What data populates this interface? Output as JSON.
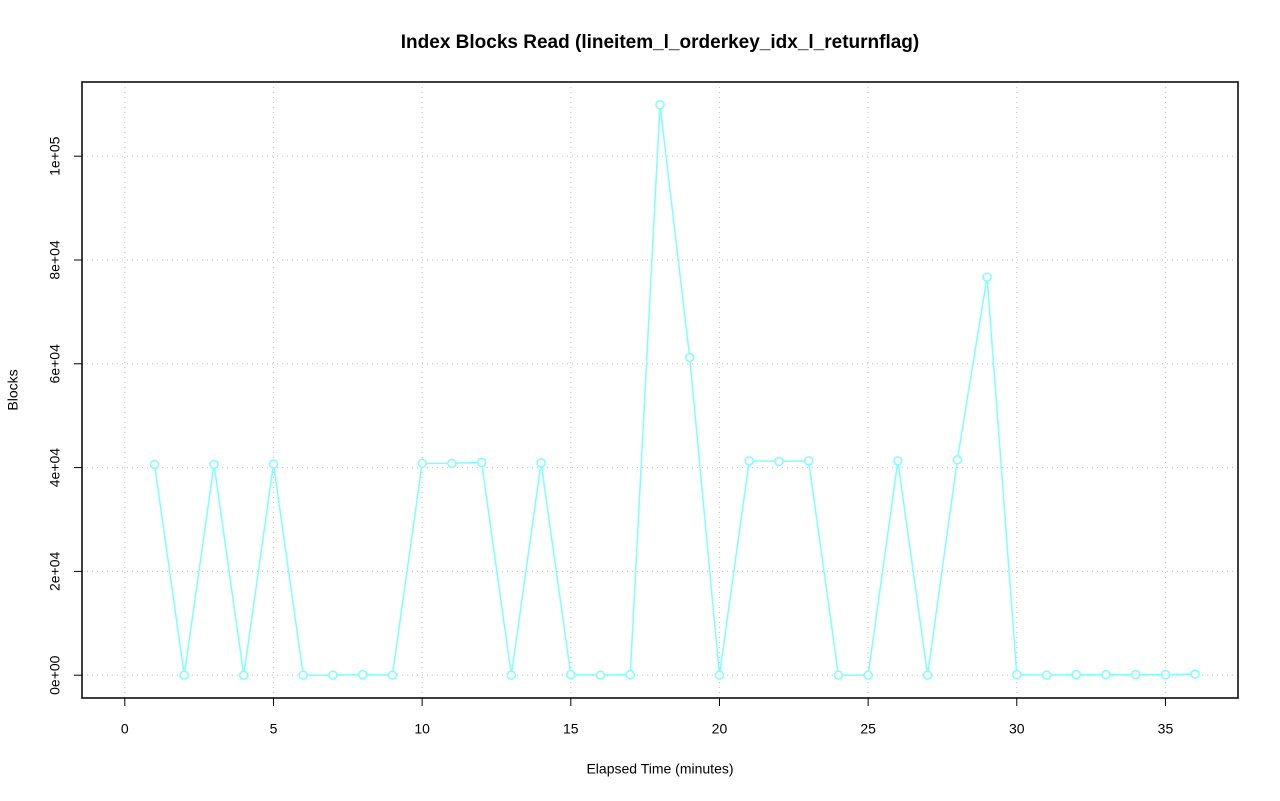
{
  "chart_data": {
    "type": "line",
    "title": "Index Blocks Read (lineitem_l_orderkey_idx_l_returnflag)",
    "xlabel": "Elapsed Time (minutes)",
    "ylabel": "Blocks",
    "x": [
      1,
      2,
      3,
      4,
      5,
      6,
      7,
      8,
      9,
      10,
      11,
      12,
      13,
      14,
      15,
      16,
      17,
      18,
      19,
      20,
      21,
      22,
      23,
      24,
      25,
      26,
      27,
      28,
      29,
      30,
      31,
      32,
      33,
      34,
      35,
      36
    ],
    "values": [
      40600,
      0,
      40600,
      0,
      40700,
      0,
      0,
      100,
      0,
      40800,
      40800,
      41000,
      0,
      40900,
      100,
      0,
      100,
      109900,
      61200,
      0,
      41300,
      41200,
      41300,
      0,
      0,
      41300,
      0,
      41500,
      76700,
      100,
      0,
      100,
      100,
      100,
      100,
      200
    ],
    "color": "#7fffff",
    "xlim": [
      -1.44,
      37.44
    ],
    "ylim": [
      -4396,
      114294
    ],
    "xticks": [
      0,
      5,
      10,
      15,
      20,
      25,
      30,
      35
    ],
    "yticks": [
      {
        "value": 0,
        "label": "0e+00"
      },
      {
        "value": 20000,
        "label": "2e+04"
      },
      {
        "value": 40000,
        "label": "4e+04"
      },
      {
        "value": 60000,
        "label": "6e+04"
      },
      {
        "value": 80000,
        "label": "8e+04"
      },
      {
        "value": 100000,
        "label": "1e+05"
      }
    ],
    "grid": true
  }
}
